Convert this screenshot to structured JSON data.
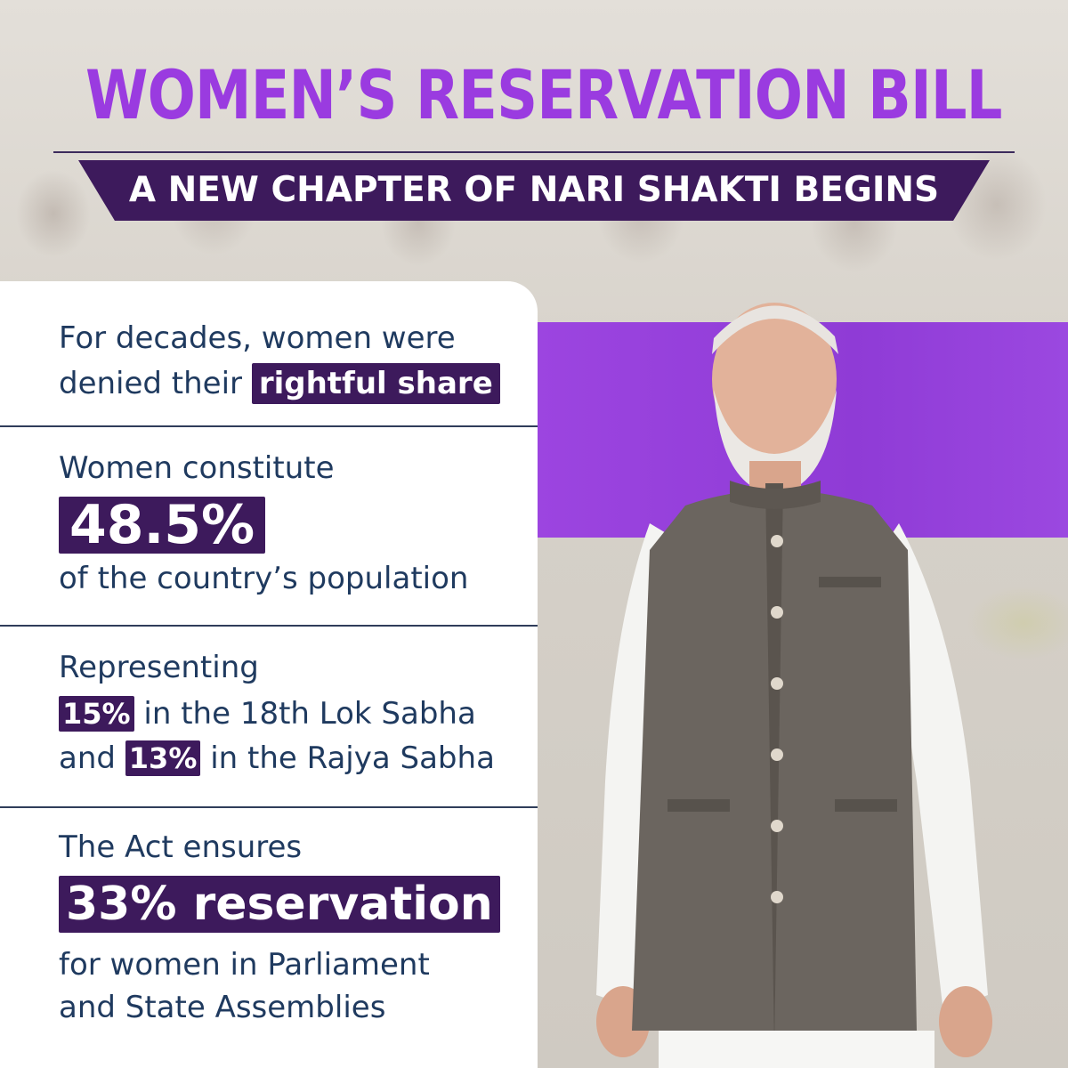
{
  "header": {
    "title": "WOMEN’S RESERVATION BILL",
    "subtitle": "A NEW CHAPTER OF NARI SHAKTI BEGINS"
  },
  "sections": {
    "s1": {
      "line1": "For decades, women were",
      "line2_prefix": "denied their",
      "line2_highlight": "rightful share"
    },
    "s2": {
      "line1": "Women constitute",
      "highlight": "48.5%",
      "line3": "of the country’s population"
    },
    "s3": {
      "line1": "Representing",
      "line2_highlight": "15%",
      "line2_suffix": "in the 18th Lok Sabha",
      "line3_prefix": "and",
      "line3_highlight": "13%",
      "line3_suffix": "in the Rajya Sabha"
    },
    "s4": {
      "line1": "The Act ensures",
      "highlight": "33% reservation",
      "line3": "for women in Parliament",
      "line4": "and State Assemblies"
    }
  },
  "colors": {
    "title_purple": "#9a3be0",
    "dark_purple": "#3d1a5c",
    "band_purple": "#9c45e0",
    "text_navy": "#1f3a5f"
  }
}
